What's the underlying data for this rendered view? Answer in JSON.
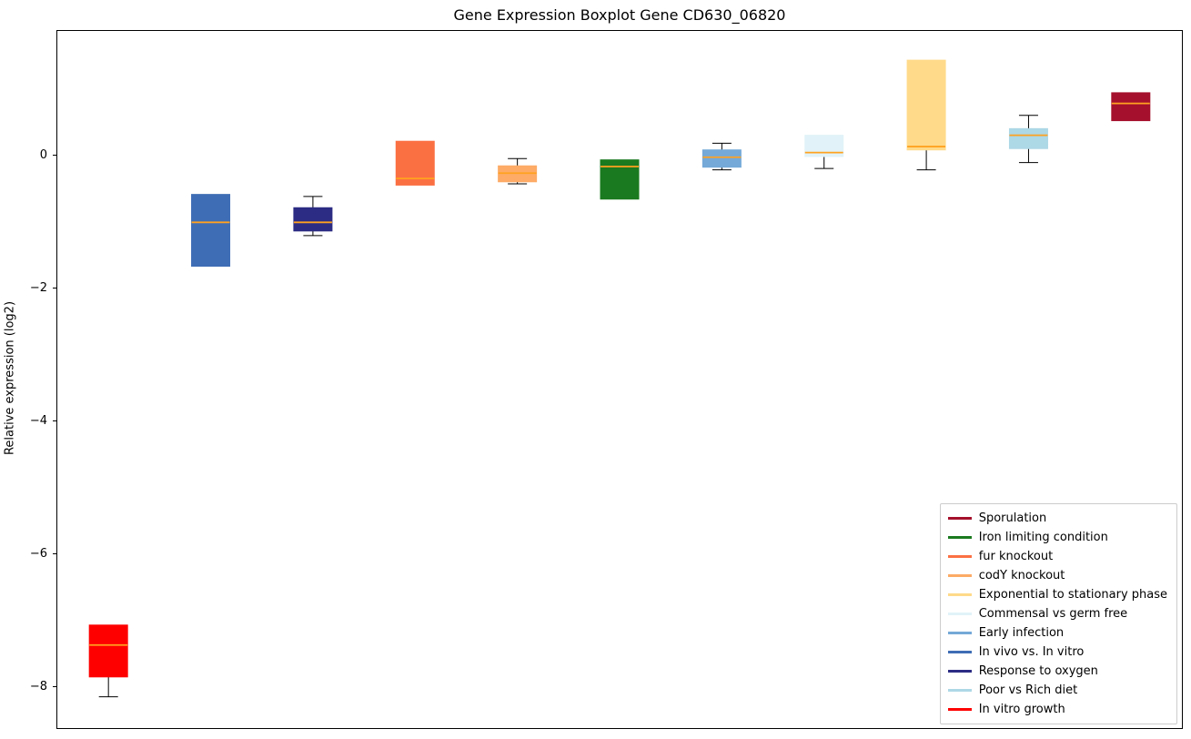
{
  "chart_data": {
    "type": "box",
    "title": "Gene Expression Boxplot Gene CD630_06820",
    "ylabel": "Relative expression (log2)",
    "ylim": [
      -8.62,
      1.87
    ],
    "yticks": [
      {
        "value": 0,
        "label": "0"
      },
      {
        "value": -2,
        "label": "−2"
      },
      {
        "value": -4,
        "label": "−4"
      },
      {
        "value": -6,
        "label": "−6"
      },
      {
        "value": -8,
        "label": "−8"
      }
    ],
    "grid": false,
    "legend_position": "lower right",
    "median_color": "#ffa220",
    "whisker_color": "#000000",
    "groups": [
      {
        "label": "In vitro growth",
        "color": "#fe0000",
        "whislo": -8.15,
        "q1": -7.85,
        "med": -7.37,
        "q3": -7.07,
        "whishi": -7.07
      },
      {
        "label": "In vivo vs. In vitro",
        "color": "#3e6db5",
        "whislo": -1.67,
        "q1": -1.67,
        "med": -1.01,
        "q3": -0.59,
        "whishi": -0.59
      },
      {
        "label": "Response to oxygen",
        "color": "#2c2c84",
        "whislo": -1.21,
        "q1": -1.14,
        "med": -1.01,
        "q3": -0.79,
        "whishi": -0.62
      },
      {
        "label": "fur knockout",
        "color": "#fb7043",
        "whislo": -0.45,
        "q1": -0.45,
        "med": -0.35,
        "q3": 0.21,
        "whishi": 0.21
      },
      {
        "label": "codY knockout",
        "color": "#fdab66",
        "whislo": -0.43,
        "q1": -0.4,
        "med": -0.27,
        "q3": -0.16,
        "whishi": -0.05
      },
      {
        "label": "Iron limiting condition",
        "color": "#1a7a1f",
        "whislo": -0.66,
        "q1": -0.66,
        "med": -0.17,
        "q3": -0.07,
        "whishi": -0.07
      },
      {
        "label": "Early infection",
        "color": "#74a9d8",
        "whislo": -0.22,
        "q1": -0.18,
        "med": -0.03,
        "q3": 0.08,
        "whishi": 0.18
      },
      {
        "label": "Commensal vs germ free",
        "color": "#e1f3f8",
        "whislo": -0.2,
        "q1": -0.02,
        "med": 0.04,
        "q3": 0.3,
        "whishi": 0.3
      },
      {
        "label": "Exponential to stationary phase",
        "color": "#ffda8a",
        "whislo": -0.22,
        "q1": 0.08,
        "med": 0.13,
        "q3": 1.43,
        "whishi": 1.43
      },
      {
        "label": "Poor vs Rich diet",
        "color": "#add8e6",
        "whislo": -0.11,
        "q1": 0.1,
        "med": 0.3,
        "q3": 0.4,
        "whishi": 0.6
      },
      {
        "label": "Sporulation",
        "color": "#a5102c",
        "whislo": 0.52,
        "q1": 0.52,
        "med": 0.78,
        "q3": 0.94,
        "whishi": 0.94
      }
    ],
    "legend": [
      {
        "label": "Sporulation",
        "color": "#a5102c"
      },
      {
        "label": "Iron limiting condition",
        "color": "#1a7a1f"
      },
      {
        "label": "fur knockout",
        "color": "#fb7043"
      },
      {
        "label": "codY knockout",
        "color": "#fdab66"
      },
      {
        "label": "Exponential to stationary phase",
        "color": "#ffda8a"
      },
      {
        "label": "Commensal vs germ free",
        "color": "#e1f3f8"
      },
      {
        "label": "Early infection",
        "color": "#74a9d8"
      },
      {
        "label": "In vivo vs. In vitro",
        "color": "#3e6db5"
      },
      {
        "label": "Response to oxygen",
        "color": "#2c2c84"
      },
      {
        "label": "Poor vs Rich diet",
        "color": "#add8e6"
      },
      {
        "label": "In vitro growth",
        "color": "#fe0000"
      }
    ]
  }
}
